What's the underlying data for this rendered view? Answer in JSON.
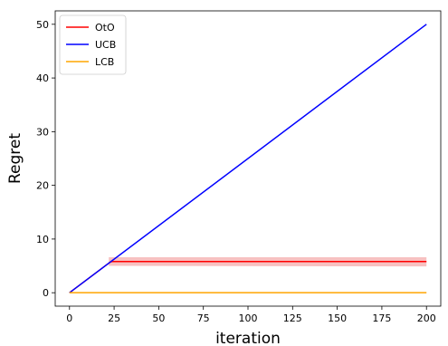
{
  "chart_data": {
    "type": "line",
    "title": "",
    "xlabel": "iteration",
    "ylabel": "Regret",
    "xlim": [
      -8,
      208
    ],
    "ylim": [
      -2.5,
      52.5
    ],
    "xticks": [
      0,
      25,
      50,
      75,
      100,
      125,
      150,
      175,
      200
    ],
    "yticks": [
      0,
      10,
      20,
      30,
      40,
      50
    ],
    "grid": false,
    "legend_position": "top-left",
    "series": [
      {
        "name": "OtO",
        "color": "#ff0000",
        "x": [
          0,
          22,
          23,
          24,
          200
        ],
        "y": [
          0,
          5.5,
          5.75,
          5.8,
          5.8
        ],
        "band_x": [
          22,
          200
        ],
        "band_lower": [
          5.0,
          4.9
        ],
        "band_upper": [
          6.6,
          6.6
        ],
        "band_color": "#f4a6a6"
      },
      {
        "name": "UCB",
        "color": "#0000ff",
        "x": [
          0,
          200
        ],
        "y": [
          0,
          50
        ]
      },
      {
        "name": "LCB",
        "color": "#ffa500",
        "x": [
          0,
          200
        ],
        "y": [
          0,
          0
        ]
      }
    ]
  }
}
